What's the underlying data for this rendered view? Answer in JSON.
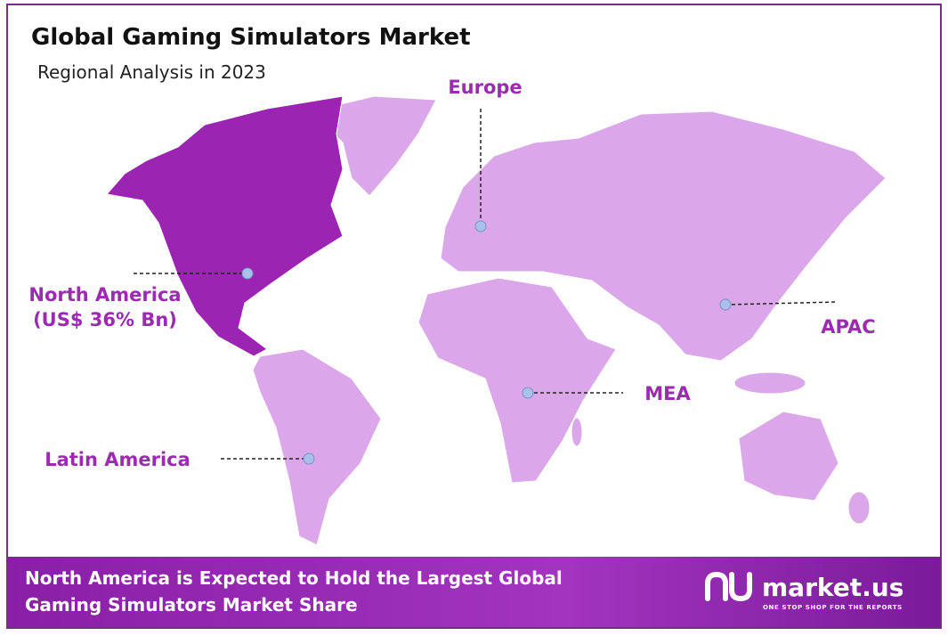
{
  "header": {
    "title": "Global Gaming Simulators Market",
    "subtitle": "Regional Analysis in 2023"
  },
  "regions": [
    {
      "label": "North America",
      "value": "(US$ 36% Bn)"
    },
    {
      "label": "Europe"
    },
    {
      "label": "APAC"
    },
    {
      "label": "MEA"
    },
    {
      "label": "Latin America"
    }
  ],
  "footer": {
    "text": [
      "North America is Expected to Hold the Largest Global",
      "Gaming Simulators Market Share"
    ],
    "logo": "market.us",
    "tagline": "ONE STOP SHOP FOR THE REPORTS"
  }
}
